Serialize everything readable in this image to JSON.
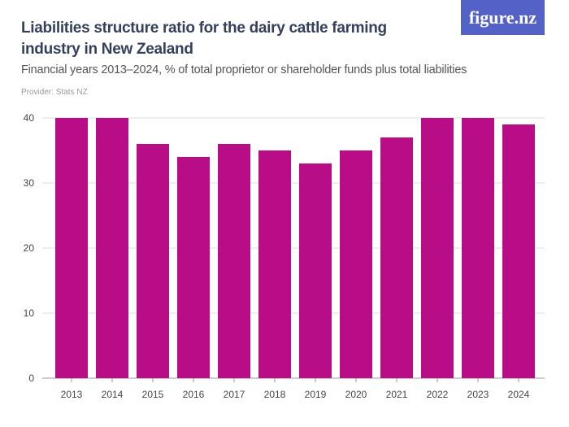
{
  "header": {
    "title": "Liabilities structure ratio for the dairy cattle farming industry in New Zealand",
    "subtitle": "Financial years 2013–2024, % of total proprietor or shareholder funds plus total liabilities",
    "provider": "Provider: Stats NZ",
    "logo": "figure.nz"
  },
  "chart_data": {
    "type": "bar",
    "title": "Liabilities structure ratio for the dairy cattle farming industry in New Zealand",
    "subtitle": "Financial years 2013–2024, % of total proprietor or shareholder funds plus total liabilities",
    "categories": [
      "2013",
      "2014",
      "2015",
      "2016",
      "2017",
      "2018",
      "2019",
      "2020",
      "2021",
      "2022",
      "2023",
      "2024"
    ],
    "values": [
      40,
      40,
      36,
      34,
      36,
      35,
      33,
      35,
      37,
      40,
      40,
      39
    ],
    "ylim": [
      0,
      40
    ],
    "yticks": [
      0,
      10,
      20,
      30,
      40
    ],
    "grid": true,
    "bar_color": "#b90c87",
    "xlabel": "",
    "ylabel": ""
  }
}
